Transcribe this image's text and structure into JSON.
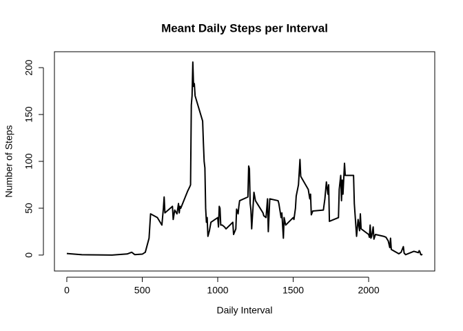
{
  "chart_data": {
    "type": "line",
    "title": "Meant Daily Steps per Interval",
    "xlabel": "Daily Interval",
    "ylabel": "Number of Steps",
    "xlim": [
      -82,
      2438
    ],
    "ylim": [
      -17,
      217
    ],
    "xticks": [
      0,
      500,
      1000,
      1500,
      2000
    ],
    "yticks": [
      0,
      50,
      100,
      150,
      200
    ],
    "color": "#000000",
    "x": [
      0,
      100,
      200,
      300,
      400,
      430,
      450,
      500,
      520,
      545,
      555,
      600,
      630,
      640,
      645,
      650,
      700,
      705,
      715,
      730,
      740,
      745,
      750,
      755,
      800,
      815,
      820,
      825,
      830,
      835,
      840,
      845,
      850,
      900,
      905,
      910,
      915,
      920,
      925,
      930,
      935,
      945,
      955,
      1000,
      1005,
      1010,
      1015,
      1020,
      1030,
      1045,
      1055,
      1100,
      1105,
      1120,
      1125,
      1135,
      1140,
      1145,
      1200,
      1205,
      1210,
      1215,
      1220,
      1225,
      1240,
      1250,
      1300,
      1305,
      1320,
      1330,
      1335,
      1345,
      1400,
      1405,
      1420,
      1425,
      1435,
      1440,
      1450,
      1500,
      1505,
      1515,
      1520,
      1535,
      1545,
      1550,
      1600,
      1610,
      1615,
      1620,
      1630,
      1700,
      1710,
      1720,
      1730,
      1735,
      1740,
      1800,
      1805,
      1815,
      1820,
      1825,
      1830,
      1840,
      1845,
      1900,
      1905,
      1920,
      1930,
      1940,
      1945,
      1950,
      2000,
      2005,
      2010,
      2015,
      2020,
      2030,
      2035,
      2045,
      2100,
      2115,
      2130,
      2140,
      2145,
      2150,
      2200,
      2215,
      2230,
      2235,
      2245,
      2300,
      2330,
      2335,
      2340,
      2345,
      2350,
      2355
    ],
    "values": [
      1.7,
      0.4,
      0.2,
      0,
      1.2,
      3,
      0.5,
      1,
      3,
      18,
      44,
      40,
      32,
      50,
      62,
      45,
      52,
      38,
      48,
      44,
      55,
      45,
      52,
      50,
      68,
      73,
      75,
      160,
      170,
      206,
      180,
      183,
      170,
      143,
      120,
      100,
      93,
      50,
      35,
      40,
      20,
      26,
      35,
      40,
      30,
      52,
      50,
      32,
      32,
      30,
      28,
      35,
      22,
      28,
      49,
      44,
      52,
      58,
      62,
      95,
      92,
      55,
      48,
      28,
      67,
      58,
      45,
      42,
      40,
      60,
      25,
      60,
      58,
      55,
      40,
      45,
      18,
      40,
      32,
      40,
      38,
      50,
      63,
      75,
      102,
      84,
      70,
      60,
      65,
      43,
      47,
      48,
      60,
      78,
      65,
      75,
      36,
      40,
      70,
      85,
      58,
      80,
      65,
      98,
      85,
      85,
      55,
      20,
      38,
      26,
      44,
      28,
      22,
      19,
      32,
      18,
      20,
      30,
      17,
      22,
      20,
      19,
      15,
      8,
      18,
      6,
      1.4,
      3,
      9,
      2.2,
      0.4,
      4,
      2.6,
      4.7,
      3.3,
      0.6,
      0.2,
      1.1
    ]
  }
}
